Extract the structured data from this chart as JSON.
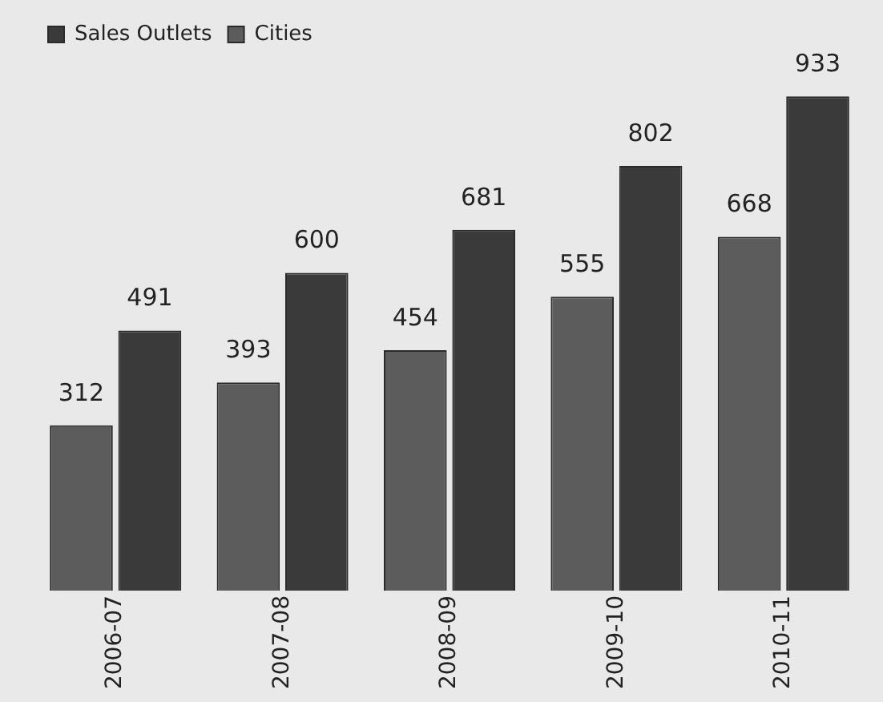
{
  "chart_data": {
    "type": "bar",
    "categories": [
      "2006-07",
      "2007-08",
      "2008-09",
      "2009-10",
      "2010-11"
    ],
    "series": [
      {
        "name": "Cities",
        "color": "#5c5c5c",
        "values": [
          312,
          393,
          454,
          555,
          668
        ]
      },
      {
        "name": "Sales Outlets",
        "color": "#3a3a3a",
        "values": [
          491,
          600,
          681,
          802,
          933
        ]
      }
    ],
    "data_labels": true,
    "legend": "top left",
    "grid": false,
    "tick_labels": "x"
  }
}
